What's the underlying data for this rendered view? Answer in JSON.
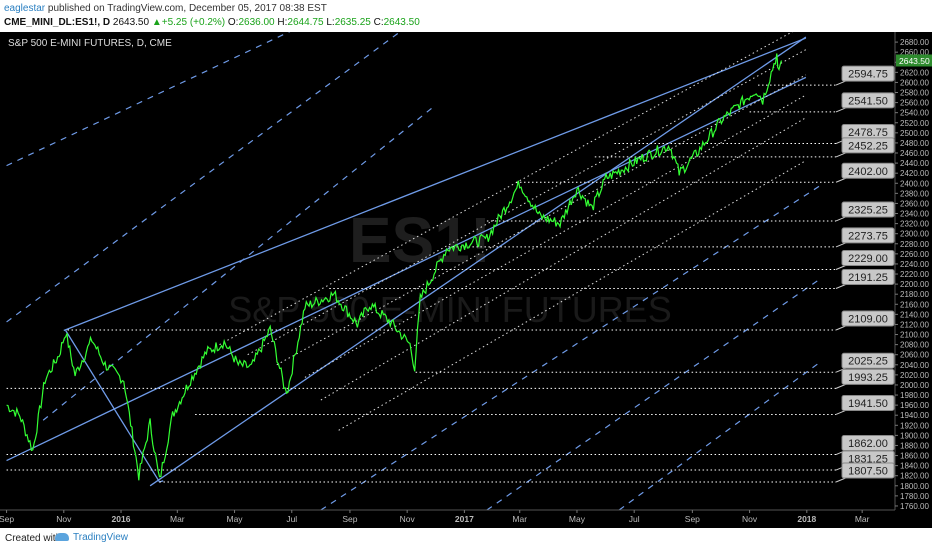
{
  "header": {
    "username": "eaglestar",
    "published_text": "published on TradingView.com, December 05, 2017 08:38 EST",
    "symbol": "CME_MINI_DL:ES1!, D",
    "last": "2643.50",
    "change": "+5.25 (+0.2%)",
    "open_label": "O:",
    "open": "2636.00",
    "high_label": "H:",
    "high": "2644.75",
    "low_label": "L:",
    "low": "2635.25",
    "close_label": "C:",
    "close": "2643.50"
  },
  "chart_title": "S&P 500 E-MINI FUTURES, D, CME",
  "watermark": {
    "symbol": "ES1!",
    "name": "S&P 500 E-MINI FUTURES"
  },
  "footer": {
    "created_with": "Created with",
    "brand": "TradingView"
  },
  "colors": {
    "background": "#000000",
    "price": "#33ff33",
    "channel": "#6f9be8",
    "level_line": "#ffffff",
    "label_box": "#c8c8c8",
    "axis_text": "#bbbbbb",
    "brand": "#2a7fc1"
  },
  "chart_data": {
    "type": "line",
    "title": "S&P 500 E-MINI FUTURES, D, CME",
    "x_axis_ticks": [
      "Sep",
      "Nov",
      "2016",
      "Mar",
      "May",
      "Jul",
      "Sep",
      "Nov",
      "2017",
      "Mar",
      "May",
      "Jul",
      "Sep",
      "Nov",
      "2018",
      "Mar"
    ],
    "y_axis_ticks": [
      1760,
      1780,
      1800,
      1820,
      1840,
      1860,
      1880,
      1900,
      1920,
      1940,
      1960,
      1980,
      2000,
      2020,
      2040,
      2060,
      2080,
      2100,
      2120,
      2140,
      2160,
      2180,
      2200,
      2220,
      2240,
      2260,
      2280,
      2300,
      2320,
      2340,
      2360,
      2380,
      2400,
      2420,
      2440,
      2460,
      2480,
      2500,
      2520,
      2540,
      2560,
      2580,
      2600,
      2620,
      2640,
      2660,
      2680
    ],
    "ylim": [
      1752,
      2700
    ],
    "last_price": 2643.5,
    "series": [
      {
        "values": [
          [
            "2015-09-01",
            1960
          ],
          [
            "2015-09-15",
            1940
          ],
          [
            "2015-09-29",
            1870
          ],
          [
            "2015-10-12",
            2010
          ],
          [
            "2015-10-27",
            2060
          ],
          [
            "2015-11-03",
            2105
          ],
          [
            "2015-11-13",
            2020
          ],
          [
            "2015-12-01",
            2090
          ],
          [
            "2015-12-15",
            2040
          ],
          [
            "2016-01-04",
            2010
          ],
          [
            "2016-01-20",
            1820
          ],
          [
            "2016-02-01",
            1925
          ],
          [
            "2016-02-11",
            1810
          ],
          [
            "2016-02-25",
            1940
          ],
          [
            "2016-03-15",
            2010
          ],
          [
            "2016-04-01",
            2065
          ],
          [
            "2016-04-20",
            2085
          ],
          [
            "2016-05-05",
            2040
          ],
          [
            "2016-05-19",
            2035
          ],
          [
            "2016-06-08",
            2110
          ],
          [
            "2016-06-24",
            1990
          ],
          [
            "2016-06-27",
            1992
          ],
          [
            "2016-07-15",
            2155
          ],
          [
            "2016-08-15",
            2180
          ],
          [
            "2016-09-09",
            2120
          ],
          [
            "2016-09-22",
            2160
          ],
          [
            "2016-10-14",
            2125
          ],
          [
            "2016-11-04",
            2080
          ],
          [
            "2016-11-09",
            2035
          ],
          [
            "2016-11-15",
            2170
          ],
          [
            "2016-12-13",
            2270
          ],
          [
            "2017-01-25",
            2290
          ],
          [
            "2017-03-01",
            2400
          ],
          [
            "2017-03-22",
            2335
          ],
          [
            "2017-04-13",
            2320
          ],
          [
            "2017-05-01",
            2390
          ],
          [
            "2017-05-17",
            2350
          ],
          [
            "2017-06-01",
            2410
          ],
          [
            "2017-07-14",
            2455
          ],
          [
            "2017-08-08",
            2475
          ],
          [
            "2017-08-18",
            2420
          ],
          [
            "2017-09-06",
            2460
          ],
          [
            "2017-10-02",
            2525
          ],
          [
            "2017-11-08",
            2585
          ],
          [
            "2017-11-15",
            2565
          ],
          [
            "2017-11-30",
            2655
          ],
          [
            "2017-12-01",
            2620
          ],
          [
            "2017-12-05",
            2643.5
          ]
        ]
      }
    ],
    "channels": {
      "solid": [
        {
          "from": [
            "2015-11-01",
            2108
          ],
          "to": [
            "2017-12-31",
            2688
          ]
        },
        {
          "from": [
            "2016-02-01",
            1800
          ],
          "to": [
            "2017-12-31",
            2690
          ]
        },
        {
          "from": [
            "2015-09-01",
            1850
          ],
          "to": [
            "2017-12-31",
            2610
          ]
        }
      ],
      "dashed": [
        {
          "from": [
            "2015-09-01",
            2435
          ],
          "to": [
            "2016-08-01",
            2730
          ]
        },
        {
          "from": [
            "2015-09-01",
            2125
          ],
          "to": [
            "2016-11-15",
            2730
          ]
        },
        {
          "from": [
            "2015-10-10",
            1930
          ],
          "to": [
            "2016-11-28",
            2550
          ]
        },
        {
          "from": [
            "2017-06-15",
            1752
          ],
          "to": [
            "2018-01-15",
            2045
          ]
        },
        {
          "from": [
            "2017-01-25",
            1752
          ],
          "to": [
            "2018-01-15",
            2210
          ]
        },
        {
          "from": [
            "2016-08-01",
            1752
          ],
          "to": [
            "2018-01-15",
            2395
          ]
        }
      ],
      "dotted": [
        {
          "from": [
            "2016-04-15",
            2080
          ],
          "to": [
            "2017-12-31",
            2715
          ]
        },
        {
          "from": [
            "2016-05-15",
            2060
          ],
          "to": [
            "2017-12-31",
            2665
          ]
        },
        {
          "from": [
            "2016-06-15",
            2040
          ],
          "to": [
            "2017-12-31",
            2615
          ]
        },
        {
          "from": [
            "2016-07-15",
            2015
          ],
          "to": [
            "2017-12-31",
            2575
          ]
        },
        {
          "from": [
            "2016-08-01",
            1970
          ],
          "to": [
            "2017-12-31",
            2530
          ]
        },
        {
          "from": [
            "2016-08-20",
            1910
          ],
          "to": [
            "2017-12-31",
            2445
          ]
        }
      ]
    },
    "levels": [
      {
        "label": "2594.75",
        "value": 2594.75,
        "from": "2017-11-10"
      },
      {
        "label": "2541.50",
        "value": 2541.5,
        "from": "2017-11-01"
      },
      {
        "label": "2478.75",
        "value": 2478.75,
        "from": "2017-06-10"
      },
      {
        "label": "2452.25",
        "value": 2452.25,
        "from": "2017-05-20"
      },
      {
        "label": "2402.00",
        "value": 2402.0,
        "from": "2017-02-25"
      },
      {
        "label": "2325.25",
        "value": 2325.25,
        "from": "2017-01-25"
      },
      {
        "label": "2273.75",
        "value": 2273.75,
        "from": "2016-12-15"
      },
      {
        "label": "2229.00",
        "value": 2229.0,
        "from": "2016-11-25"
      },
      {
        "label": "2191.25",
        "value": 2191.25,
        "from": "2016-08-10"
      },
      {
        "label": "2109.00",
        "value": 2109.0,
        "from": "2015-11-05"
      },
      {
        "label": "2025.25",
        "value": 2025.25,
        "from": "2016-11-10"
      },
      {
        "label": "1993.25",
        "value": 1993.25,
        "from": "2015-09-01"
      },
      {
        "label": "1941.50",
        "value": 1941.5,
        "from": "2016-03-20"
      },
      {
        "label": "1862.00",
        "value": 1862.0,
        "from": "2015-09-01"
      },
      {
        "label": "1831.25",
        "value": 1831.25,
        "from": "2015-09-01"
      },
      {
        "label": "1807.50",
        "value": 1807.5,
        "from": "2016-02-11"
      }
    ]
  }
}
